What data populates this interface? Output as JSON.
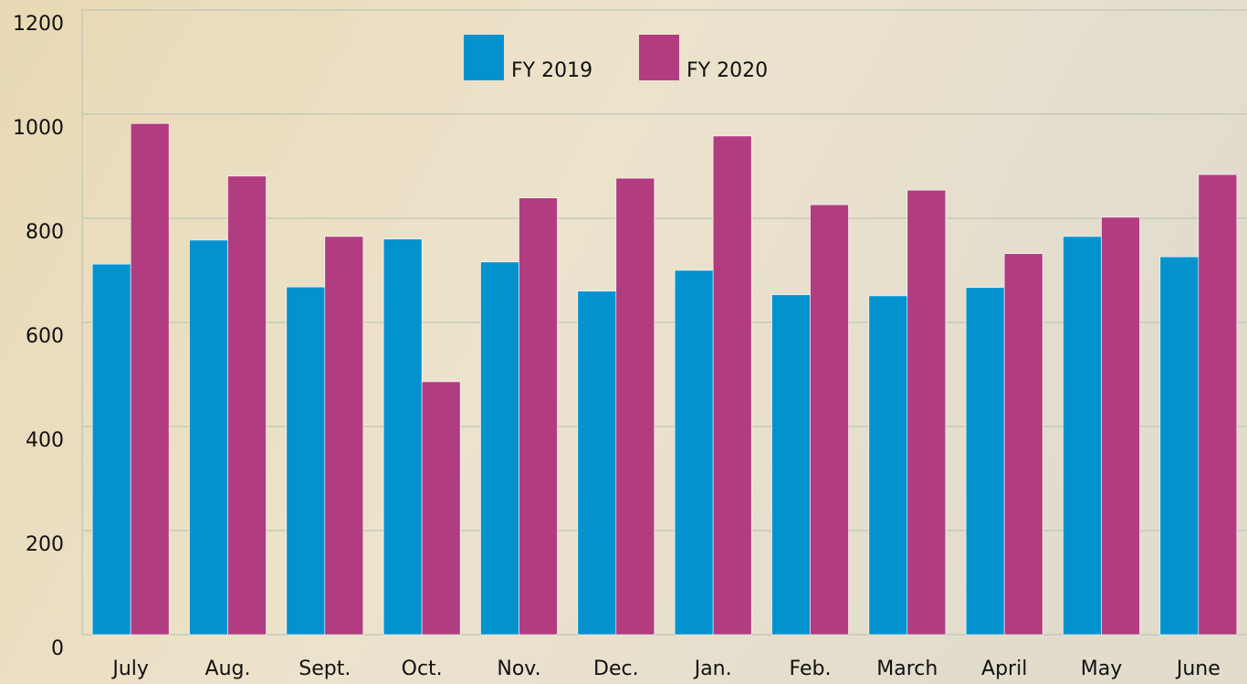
{
  "chart_data": {
    "type": "bar",
    "categories": [
      "July",
      "Aug.",
      "Sept.",
      "Oct.",
      "Nov.",
      "Dec.",
      "Jan.",
      "Feb.",
      "March",
      "April",
      "May",
      "June"
    ],
    "series": [
      {
        "name": "FY 2019",
        "color": "#0293cf",
        "values": [
          712,
          758,
          668,
          760,
          716,
          660,
          700,
          653,
          651,
          667,
          765,
          726
        ]
      },
      {
        "name": "FY 2020",
        "color": "#b13c7f",
        "values": [
          982,
          881,
          765,
          486,
          839,
          877,
          958,
          826,
          854,
          732,
          802,
          884
        ]
      }
    ],
    "ylim": [
      0,
      1200
    ],
    "yticks": [
      0,
      200,
      400,
      600,
      800,
      1000,
      1200
    ],
    "grid": true
  }
}
